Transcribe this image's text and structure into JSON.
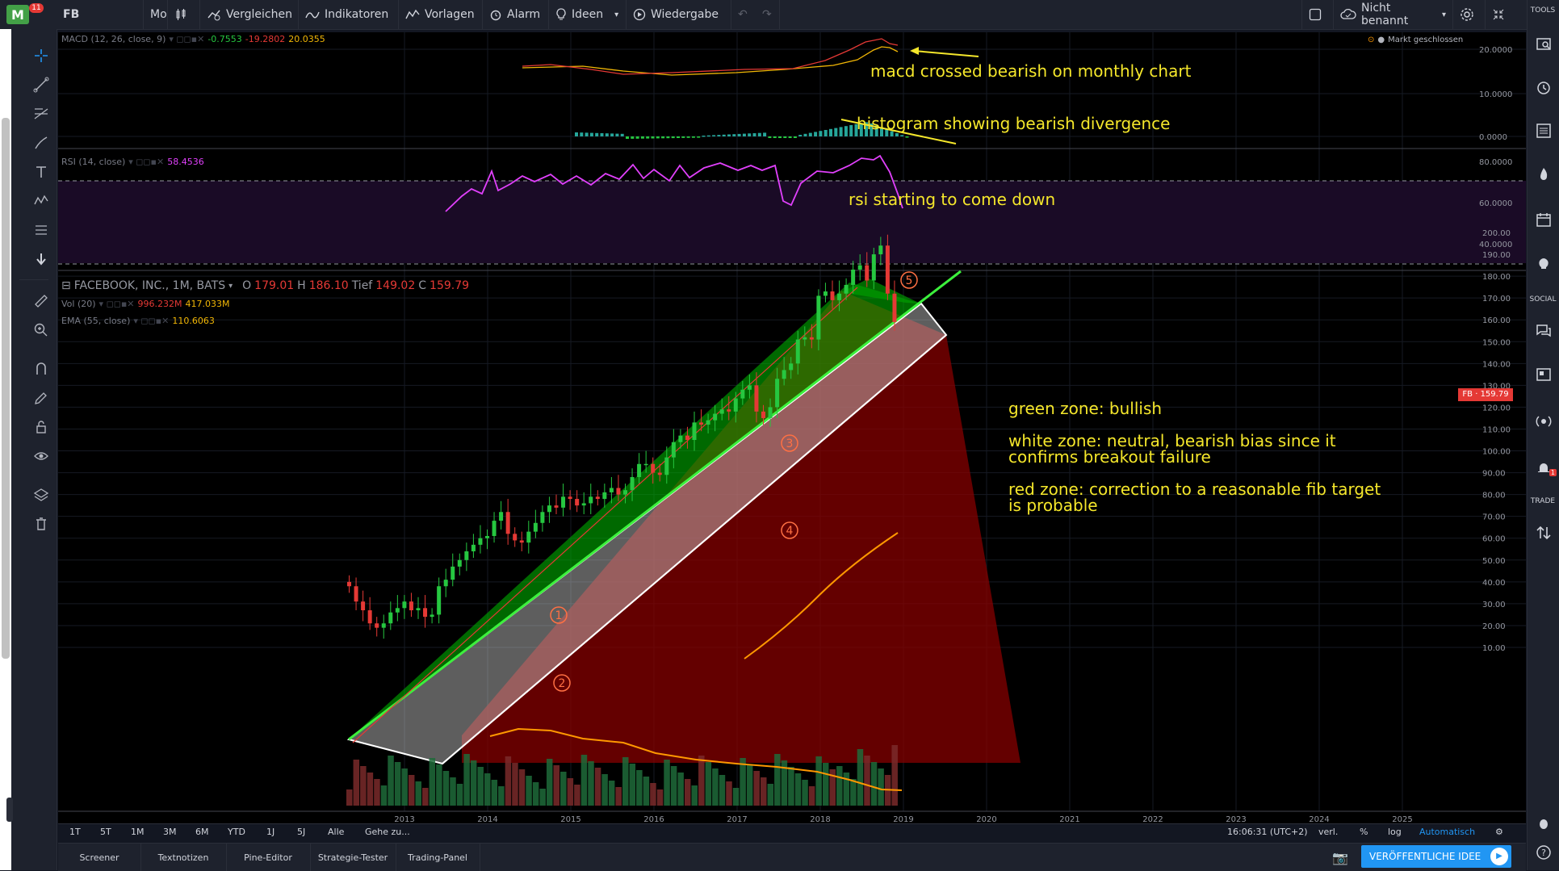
{
  "topbar": {
    "logo_badge": "11",
    "symbol": "FB",
    "interval": "Mo",
    "compare_label": "Vergleichen",
    "indicators_label": "Indikatoren",
    "templates_label": "Vorlagen",
    "alarm_label": "Alarm",
    "ideas_label": "Ideen",
    "replay_label": "Wiedergabe",
    "layout_name": "Nicht benannt"
  },
  "right_toolbar": {
    "tools_label": "TOOLS",
    "social_label": "SOCIAL",
    "trade_label": "TRADE",
    "alert_badge": "1"
  },
  "macd": {
    "label": "MACD (12, 26, close, 9)",
    "v1": "-0.7553",
    "v2": "-19.2802",
    "v3": "20.0355",
    "market_status": "Markt geschlossen",
    "y_ticks": [
      "20.0000",
      "10.0000",
      "0.0000"
    ]
  },
  "rsi": {
    "label": "RSI (14, close)",
    "value": "58.4536",
    "y_ticks": [
      "80.0000",
      "60.0000",
      "40.0000"
    ]
  },
  "main": {
    "title": "FACEBOOK, INC., 1M, BATS",
    "o_label": "O",
    "o": "179.01",
    "h_label": "H",
    "h": "186.10",
    "l_label": "Tief",
    "l": "149.02",
    "c_label": "C",
    "c": "159.79",
    "vol_label": "Vol (20)",
    "vol1": "996.232M",
    "vol2": "417.033M",
    "ema_label": "EMA (55, close)",
    "ema": "110.6063",
    "price_tag": "FB · 159.79",
    "y_ticks": [
      "200.00",
      "190.00",
      "180.00",
      "170.00",
      "160.00",
      "150.00",
      "140.00",
      "130.00",
      "120.00",
      "110.00",
      "100.00",
      "90.00",
      "80.00",
      "70.00",
      "60.00",
      "50.00",
      "40.00",
      "30.00",
      "20.00",
      "10.00"
    ],
    "x_ticks": [
      "2013",
      "2014",
      "2015",
      "2016",
      "2017",
      "2018",
      "2019",
      "2020",
      "2021",
      "2022",
      "2023",
      "2024",
      "2025"
    ],
    "wave_labels": [
      "1",
      "2",
      "3",
      "4",
      "5"
    ]
  },
  "annotations": {
    "macd_note": "macd crossed bearish on monthly chart",
    "hist_note": "histogram showing bearish divergence",
    "rsi_note": "rsi starting to come down",
    "zone_green": "green zone: bullish",
    "zone_white_1": "white zone: neutral, bearish bias since it",
    "zone_white_2": "confirms breakout failure",
    "zone_red_1": "red zone: correction to a reasonable fib target",
    "zone_red_2": "is probable"
  },
  "timeframes": [
    "1T",
    "5T",
    "1M",
    "3M",
    "6M",
    "YTD",
    "1J",
    "5J",
    "Alle"
  ],
  "goto_label": "Gehe zu...",
  "status": {
    "time": "16:06:31 (UTC+2)",
    "ext": "verl.",
    "pct": "%",
    "log": "log",
    "auto": "Automatisch"
  },
  "bottom_tabs": [
    "Screener",
    "Textnotizen",
    "Pine-Editor",
    "Strategie-Tester",
    "Trading-Panel"
  ],
  "publish_label": "VERÖFFENTLICHE IDEE",
  "colors": {
    "annotation": "#f5e72b",
    "bull": "#26c740",
    "bear": "#e53935",
    "rsi_line": "#e040fb",
    "publish": "#2196f3"
  }
}
